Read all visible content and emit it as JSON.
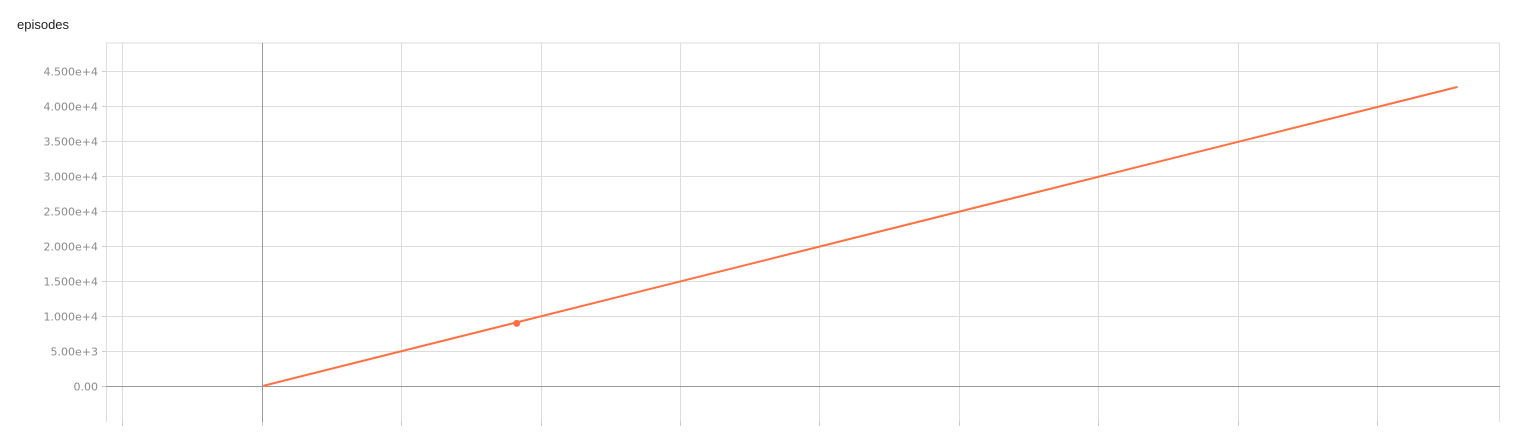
{
  "chart_data": {
    "type": "line",
    "title": "episodes",
    "xlabel": "",
    "ylabel": "",
    "ylim": [
      -5200,
      49000
    ],
    "xlim": [
      -0.1117,
      0.8883
    ],
    "yticks": [
      0,
      5000,
      10000,
      15000,
      20000,
      25000,
      30000,
      35000,
      40000,
      45000
    ],
    "ytick_labels": [
      "0.00",
      "5.00e+3",
      "1.000e+4",
      "1.500e+4",
      "2.000e+4",
      "2.500e+4",
      "3.000e+4",
      "3.500e+4",
      "4.000e+4",
      "4.500e+4"
    ],
    "xgrid": [
      -0.1,
      0.0,
      0.1,
      0.2,
      0.3,
      0.4,
      0.5,
      0.6,
      0.7,
      0.8
    ],
    "grid": true,
    "series": [
      {
        "color": "#ff7043",
        "x": [
          0.0017,
          0.8573
        ],
        "y": [
          0,
          42700
        ]
      }
    ],
    "highlight_point": {
      "x": 0.1829,
      "y": 8900,
      "color": "#ff7043"
    }
  }
}
